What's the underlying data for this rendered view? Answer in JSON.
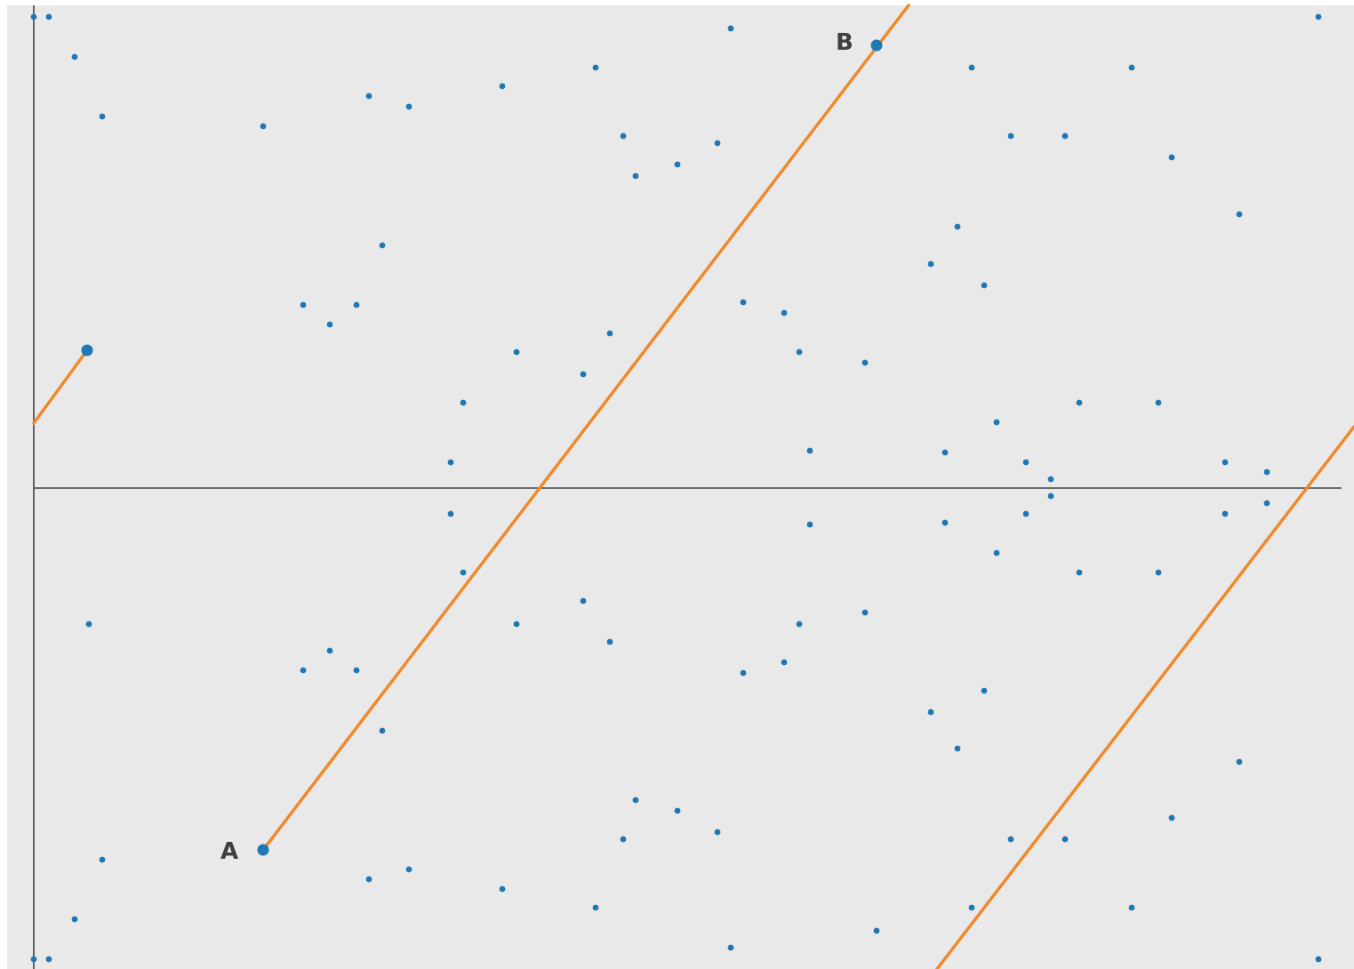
{
  "diagram": {
    "colors": {
      "background": "#e9e9e9",
      "axis": "#444444",
      "point": "#1f77b4",
      "line": "#f0892c",
      "label": "#404040"
    },
    "labels": {
      "a": "A",
      "b": "B"
    }
  }
}
